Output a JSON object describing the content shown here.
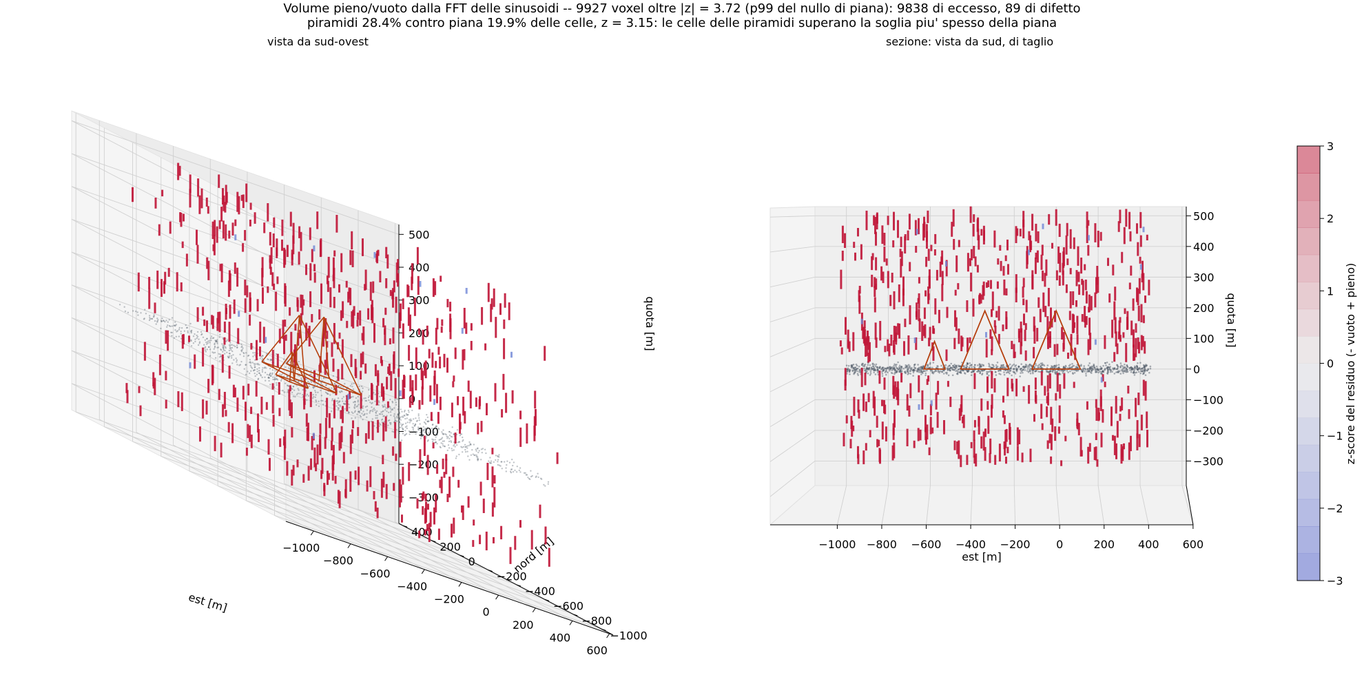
{
  "chart_data": {
    "type": "scatter",
    "title": {
      "line1": "Volume pieno/vuoto dalla FFT delle sinusoidi -- 9927 voxel oltre |z| = 3.72 (p99 del nullo di piana): 9838 di eccesso, 89 di difetto",
      "line2": "piramidi 28.4% contro piana 19.9% delle celle, z = 3.15: le celle delle piramidi superano la soglia piu' spesso della piana"
    },
    "panels": [
      {
        "subtitle": "vista da sud-ovest",
        "xlabel": "est [m]",
        "ylabel": "nord [m]",
        "zlabel": "quota [m]",
        "xticks": [
          "−1000",
          "−800",
          "−600",
          "−400",
          "−200",
          "0",
          "200",
          "400",
          "600"
        ],
        "yticks": [
          "−1000",
          "−800",
          "−600",
          "−400",
          "−200",
          "0",
          "200",
          "400"
        ],
        "zticks": [
          "500",
          "400",
          "300",
          "200",
          "100",
          "0",
          "−100",
          "−200",
          "−300"
        ],
        "xlim": [
          -1150,
          620
        ],
        "ylim": [
          -1080,
          430
        ],
        "zlim": [
          -380,
          530
        ]
      },
      {
        "subtitle": "sezione: vista da sud, di taglio",
        "xlabel": "est [m]",
        "zlabel": "quota [m]",
        "xticks": [
          "−1000",
          "−800",
          "−600",
          "−400",
          "−200",
          "0",
          "200",
          "400",
          "600"
        ],
        "zticks": [
          "500",
          "400",
          "300",
          "200",
          "100",
          "0",
          "−100",
          "−200",
          "−300"
        ],
        "xlim": [
          -1150,
          620
        ],
        "zlim": [
          -380,
          530
        ]
      }
    ],
    "series": [
      {
        "name": "eccesso (+ pieno)",
        "count": 9838,
        "color": "#c0183a"
      },
      {
        "name": "difetto (- vuoto)",
        "count": 89,
        "color": "#6f86d6"
      },
      {
        "name": "piana",
        "color": "#4a5561"
      },
      {
        "name": "piramidi",
        "color": "#b5400e"
      }
    ],
    "pyramids": [
      {
        "cx": -340,
        "cy": -120,
        "base": 230,
        "height": 190
      },
      {
        "cx": 0,
        "cy": 150,
        "base": 230,
        "height": 190
      },
      {
        "cx": -580,
        "cy": -380,
        "base": 100,
        "height": 90
      }
    ],
    "colorbar": {
      "label": "z-score del residuo  (- vuoto   + pieno)",
      "ticks": [
        "3",
        "2",
        "1",
        "0",
        "−1",
        "−2",
        "−3"
      ],
      "range": [
        -3,
        3
      ]
    }
  }
}
